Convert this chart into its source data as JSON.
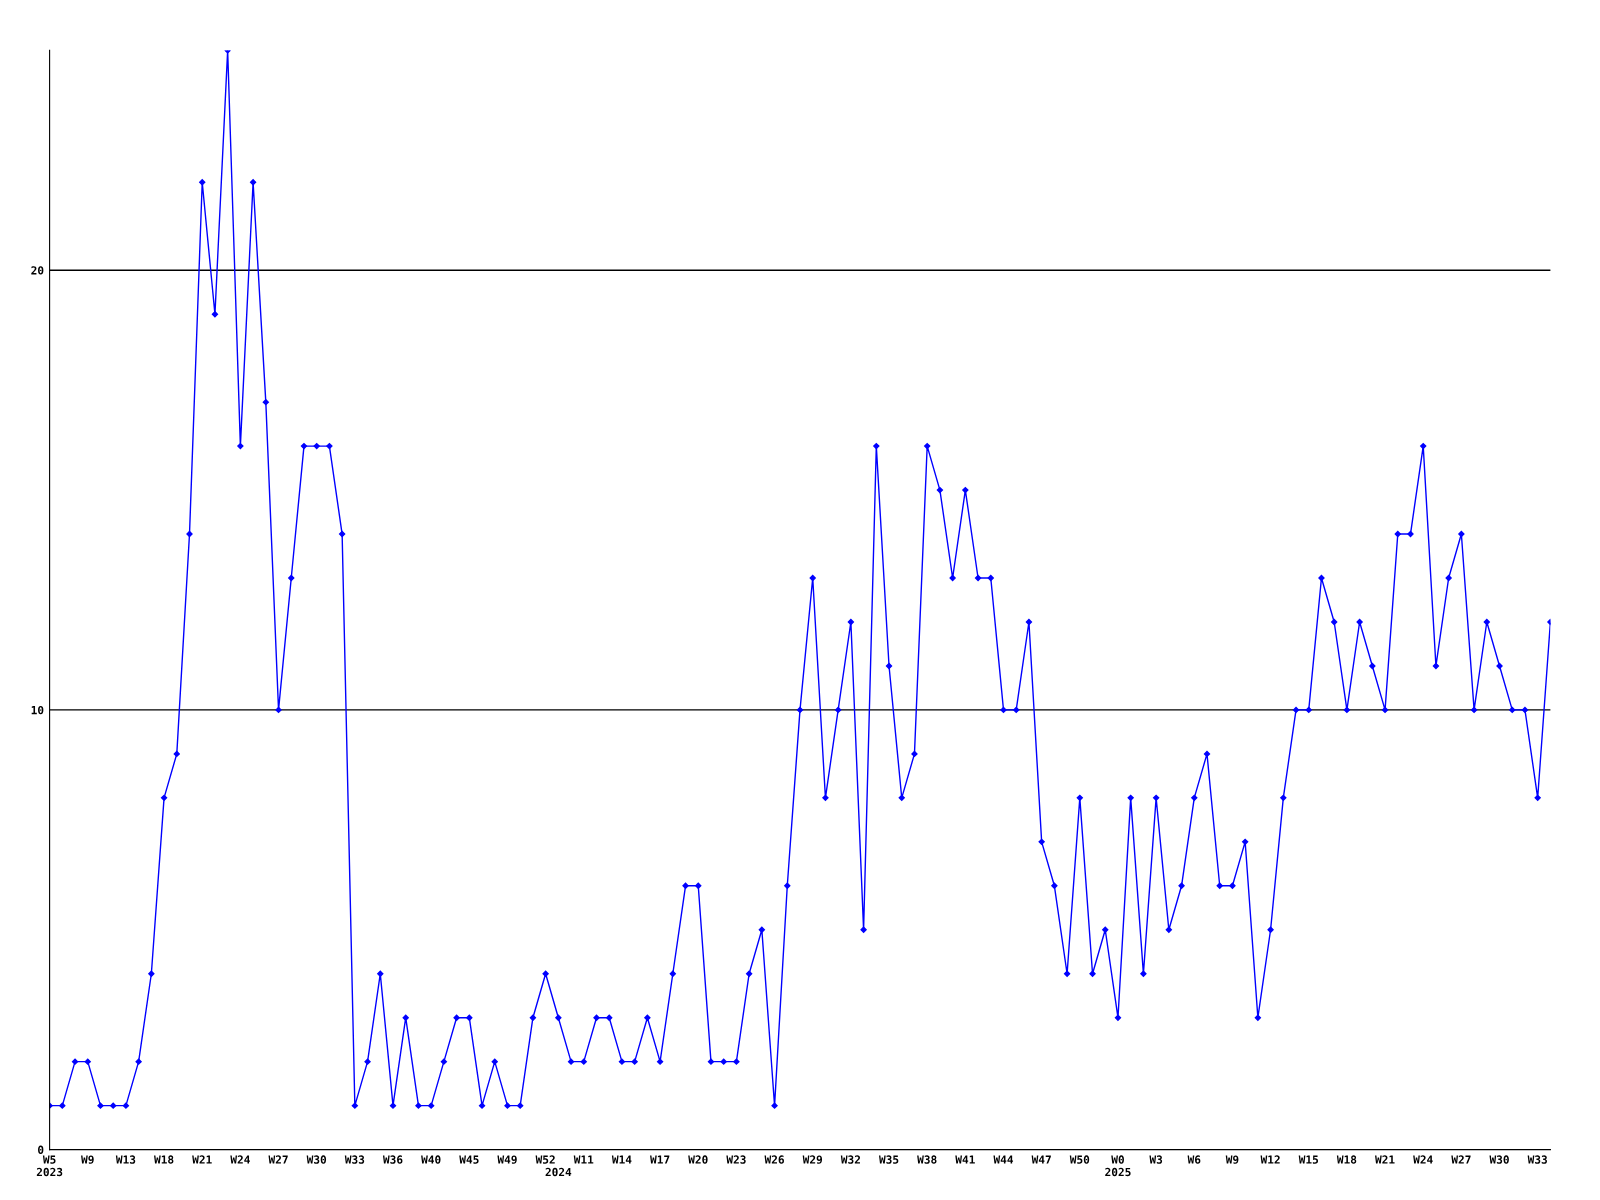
{
  "chart_data": {
    "type": "line",
    "categories": [
      "W5\n2023",
      null,
      null,
      "W9",
      null,
      null,
      "W13",
      null,
      null,
      "W18",
      null,
      null,
      "W21",
      null,
      null,
      "W24",
      null,
      null,
      "W27",
      null,
      null,
      "W30",
      null,
      null,
      "W33",
      null,
      null,
      "W36",
      null,
      null,
      "W40",
      null,
      null,
      "W45",
      null,
      null,
      "W49",
      null,
      null,
      "W52",
      "\n2024",
      null,
      "W11",
      null,
      null,
      "W14",
      null,
      null,
      "W17",
      null,
      null,
      "W20",
      null,
      null,
      "W23",
      null,
      null,
      "W26",
      null,
      null,
      "W29",
      null,
      null,
      "W32",
      null,
      null,
      "W35",
      null,
      null,
      "W38",
      null,
      null,
      "W41",
      null,
      null,
      "W44",
      null,
      null,
      "W47",
      null,
      null,
      "W50",
      null,
      null,
      "W0\n2025",
      null,
      null,
      "W3",
      null,
      null,
      "W6",
      null,
      null,
      "W9",
      null,
      null,
      "W12",
      null,
      null,
      "W15",
      null,
      null,
      "W18",
      null,
      null,
      "W21",
      null,
      null,
      "W24",
      null,
      null,
      "W27",
      null,
      null,
      "W30",
      null,
      null,
      "W33",
      null
    ],
    "series": [
      {
        "color": "#0000ff",
        "values": [
          1,
          1,
          2,
          2,
          1,
          1,
          1,
          2,
          4,
          8,
          9,
          14,
          22,
          19,
          25,
          16,
          22,
          17,
          10,
          13,
          16,
          16,
          16,
          14,
          1,
          2,
          4,
          1,
          3,
          1,
          1,
          2,
          3,
          3,
          1,
          2,
          1,
          1,
          3,
          4,
          3,
          2,
          2,
          3,
          3,
          2,
          2,
          3,
          2,
          4,
          6,
          6,
          2,
          2,
          2,
          4,
          5,
          1,
          6,
          10,
          13,
          8,
          10,
          12,
          5,
          16,
          11,
          8,
          9,
          16,
          15,
          13,
          15,
          13,
          13,
          10,
          10,
          12,
          7,
          6,
          4,
          8,
          4,
          5,
          3,
          8,
          4,
          8,
          5,
          6,
          8,
          9,
          6,
          6,
          7,
          3,
          5,
          8,
          10,
          10,
          13,
          12,
          10,
          12,
          11,
          10,
          14,
          14,
          16,
          11,
          13,
          14,
          10,
          12,
          11,
          10,
          10,
          8,
          12
        ]
      }
    ],
    "ylim": [
      0,
      25
    ],
    "yticks": [
      0,
      10,
      20
    ],
    "grid": "y",
    "legend": false,
    "marker": "diamond",
    "line_style": "solid"
  }
}
